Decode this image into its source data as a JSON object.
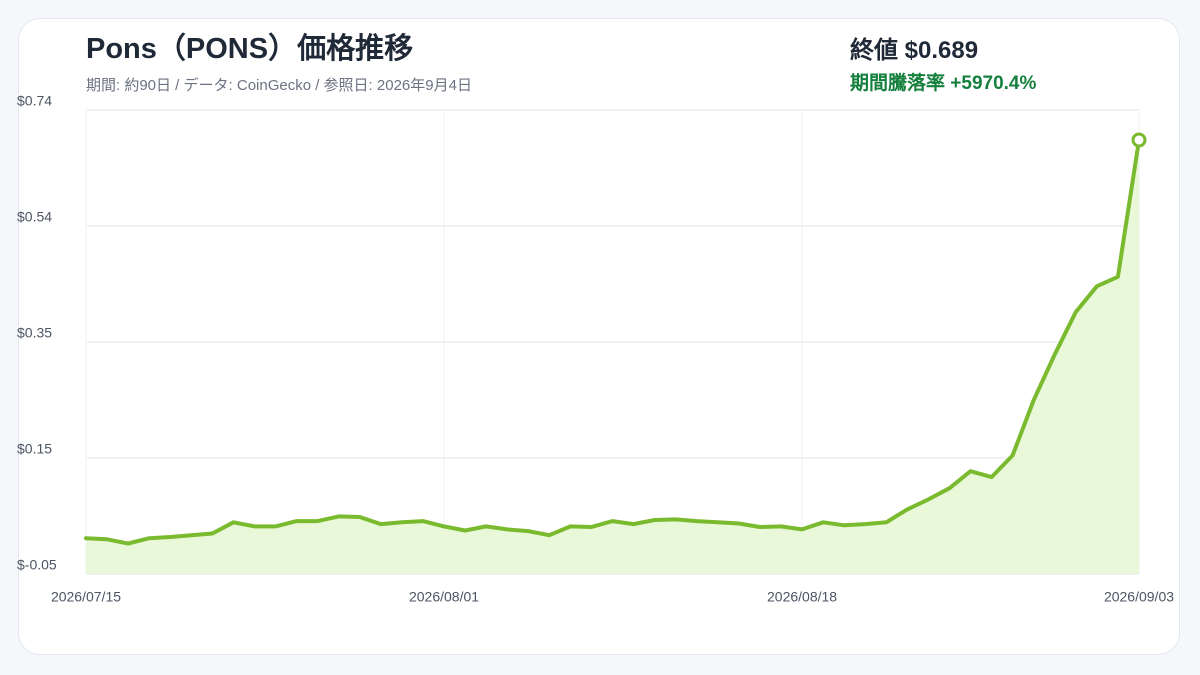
{
  "chart_data": {
    "type": "line",
    "title": "Pons（PONS）価格推移",
    "subtitle": "期間: 約90日 / データ: CoinGecko / 参照日: 2026年9月4日",
    "close_label": "終値 $0.689",
    "change_label": "期間騰落率 +5970.4%",
    "x": [
      "2026/07/15",
      "2026/07/16",
      "2026/07/17",
      "2026/07/18",
      "2026/07/19",
      "2026/07/20",
      "2026/07/21",
      "2026/07/22",
      "2026/07/23",
      "2026/07/24",
      "2026/07/25",
      "2026/07/26",
      "2026/07/27",
      "2026/07/28",
      "2026/07/29",
      "2026/07/30",
      "2026/07/31",
      "2026/08/01",
      "2026/08/02",
      "2026/08/03",
      "2026/08/04",
      "2026/08/05",
      "2026/08/06",
      "2026/08/07",
      "2026/08/08",
      "2026/08/09",
      "2026/08/10",
      "2026/08/11",
      "2026/08/12",
      "2026/08/13",
      "2026/08/14",
      "2026/08/15",
      "2026/08/16",
      "2026/08/17",
      "2026/08/18",
      "2026/08/19",
      "2026/08/20",
      "2026/08/21",
      "2026/08/22",
      "2026/08/23",
      "2026/08/24",
      "2026/08/25",
      "2026/08/26",
      "2026/08/27",
      "2026/08/28",
      "2026/08/29",
      "2026/08/30",
      "2026/08/31",
      "2026/09/01",
      "2026/09/02",
      "2026/09/03"
    ],
    "series": [
      {
        "name": "PONS",
        "color": "#7aba2e",
        "fill": "#e8f8d9",
        "values": [
          0.011,
          0.009,
          0.002,
          0.011,
          0.013,
          0.016,
          0.019,
          0.038,
          0.031,
          0.031,
          0.04,
          0.04,
          0.048,
          0.047,
          0.035,
          0.038,
          0.04,
          0.031,
          0.024,
          0.031,
          0.026,
          0.023,
          0.016,
          0.031,
          0.03,
          0.04,
          0.035,
          0.042,
          0.043,
          0.04,
          0.038,
          0.036,
          0.03,
          0.031,
          0.026,
          0.038,
          0.033,
          0.035,
          0.038,
          0.06,
          0.077,
          0.096,
          0.125,
          0.115,
          0.152,
          0.246,
          0.324,
          0.396,
          0.44,
          0.456,
          0.689
        ]
      }
    ],
    "ylim": [
      -0.05,
      0.74
    ],
    "yticks": [
      {
        "value": -0.05,
        "label": "$-0.05"
      },
      {
        "value": 0.1475,
        "label": "$0.15"
      },
      {
        "value": 0.345,
        "label": "$0.35"
      },
      {
        "value": 0.5425,
        "label": "$0.54"
      },
      {
        "value": 0.74,
        "label": "$0.74"
      }
    ],
    "xticks": [
      "2026/07/15",
      "2026/08/01",
      "2026/08/18",
      "2026/09/03"
    ],
    "grid": true
  }
}
